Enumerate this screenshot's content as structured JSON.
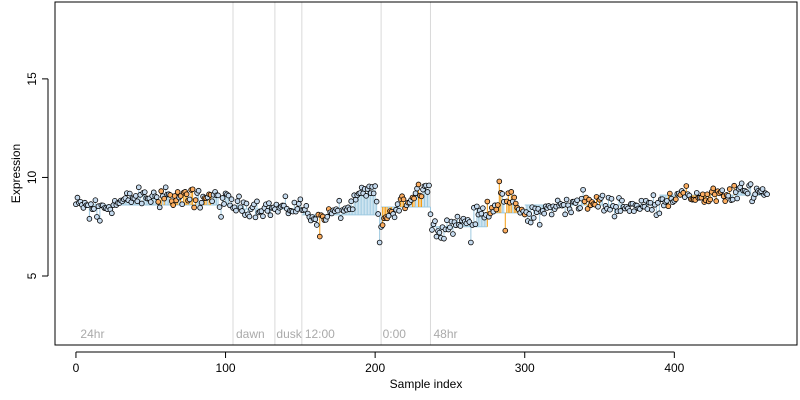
{
  "chart_data": {
    "type": "scatter",
    "title": "",
    "xlabel": "Sample index",
    "ylabel": "Expression",
    "xlim": [
      -14,
      482
    ],
    "ylim": [
      1.5,
      18.9
    ],
    "x_ticks": [
      0,
      100,
      200,
      300,
      400
    ],
    "y_ticks": [
      5,
      10,
      15
    ],
    "grid": false,
    "legend": "none",
    "colors": {
      "light_point_fill": "#c6dbef",
      "highlight_point_fill": "#fdae61",
      "point_outline": "#000000",
      "light_segment": "#9ecae1",
      "highlight_segment": "#f39c12",
      "divider": "#d9d9d9",
      "period_label": "#aaaaaa"
    },
    "period_boundaries": [
      {
        "x": 105,
        "label": ""
      },
      {
        "x": 133,
        "label": ""
      },
      {
        "x": 151,
        "label": ""
      },
      {
        "x": 204,
        "label": ""
      },
      {
        "x": 237,
        "label": ""
      }
    ],
    "period_labels": [
      {
        "x": 3,
        "label": "24hr"
      },
      {
        "x": 107,
        "label": "dawn"
      },
      {
        "x": 134,
        "label": "dusk"
      },
      {
        "x": 153,
        "label": "12:00"
      },
      {
        "x": 205,
        "label": "0:00"
      },
      {
        "x": 239,
        "label": "48hr"
      }
    ],
    "baseline_segments": [
      {
        "x_start": 0,
        "x_end": 105,
        "y": 8.6
      },
      {
        "x_start": 105,
        "x_end": 133,
        "y": 8.4
      },
      {
        "x_start": 133,
        "x_end": 151,
        "y": 8.4
      },
      {
        "x_start": 151,
        "x_end": 204,
        "y": 8.1
      },
      {
        "x_start": 204,
        "x_end": 237,
        "y": 8.5
      },
      {
        "x_start": 237,
        "x_end": 275,
        "y": 7.5
      },
      {
        "x_start": 275,
        "x_end": 300,
        "y": 8.2
      },
      {
        "x_start": 300,
        "x_end": 390,
        "y": 8.6
      },
      {
        "x_start": 390,
        "x_end": 462,
        "y": 9.1
      }
    ],
    "trend_knots": [
      {
        "x": 0,
        "y": 8.6
      },
      {
        "x": 20,
        "y": 8.5
      },
      {
        "x": 40,
        "y": 9.0
      },
      {
        "x": 60,
        "y": 9.0
      },
      {
        "x": 80,
        "y": 8.9
      },
      {
        "x": 95,
        "y": 9.0
      },
      {
        "x": 105,
        "y": 8.6
      },
      {
        "x": 133,
        "y": 8.4
      },
      {
        "x": 151,
        "y": 8.5
      },
      {
        "x": 160,
        "y": 7.9
      },
      {
        "x": 170,
        "y": 8.1
      },
      {
        "x": 185,
        "y": 8.6
      },
      {
        "x": 190,
        "y": 9.1
      },
      {
        "x": 200,
        "y": 9.3
      },
      {
        "x": 203,
        "y": 7.6
      },
      {
        "x": 205,
        "y": 7.8
      },
      {
        "x": 215,
        "y": 8.3
      },
      {
        "x": 225,
        "y": 9.1
      },
      {
        "x": 232,
        "y": 9.6
      },
      {
        "x": 236,
        "y": 9.4
      },
      {
        "x": 238,
        "y": 7.4
      },
      {
        "x": 250,
        "y": 7.6
      },
      {
        "x": 265,
        "y": 7.9
      },
      {
        "x": 275,
        "y": 8.4
      },
      {
        "x": 285,
        "y": 8.8
      },
      {
        "x": 292,
        "y": 8.9
      },
      {
        "x": 300,
        "y": 8.0
      },
      {
        "x": 320,
        "y": 8.5
      },
      {
        "x": 340,
        "y": 8.8
      },
      {
        "x": 360,
        "y": 8.6
      },
      {
        "x": 380,
        "y": 8.5
      },
      {
        "x": 400,
        "y": 9.0
      },
      {
        "x": 430,
        "y": 9.1
      },
      {
        "x": 450,
        "y": 9.3
      },
      {
        "x": 462,
        "y": 9.3
      }
    ],
    "outliers": [
      {
        "x": 9,
        "y": 7.9
      },
      {
        "x": 14,
        "y": 8.0
      },
      {
        "x": 16,
        "y": 7.8
      },
      {
        "x": 60,
        "y": 9.5
      },
      {
        "x": 78,
        "y": 9.4
      },
      {
        "x": 97,
        "y": 8.0
      },
      {
        "x": 163,
        "y": 7.0
      },
      {
        "x": 203,
        "y": 6.7
      },
      {
        "x": 241,
        "y": 7.0
      },
      {
        "x": 243,
        "y": 7.2
      },
      {
        "x": 264,
        "y": 6.7
      },
      {
        "x": 283,
        "y": 9.8
      },
      {
        "x": 287,
        "y": 7.3
      },
      {
        "x": 310,
        "y": 7.6
      },
      {
        "x": 434,
        "y": 8.8
      }
    ],
    "highlight_ranges": [
      [
        55,
        90
      ],
      [
        160,
        170
      ],
      [
        205,
        232
      ],
      [
        275,
        300
      ],
      [
        340,
        350
      ],
      [
        395,
        440
      ]
    ]
  }
}
